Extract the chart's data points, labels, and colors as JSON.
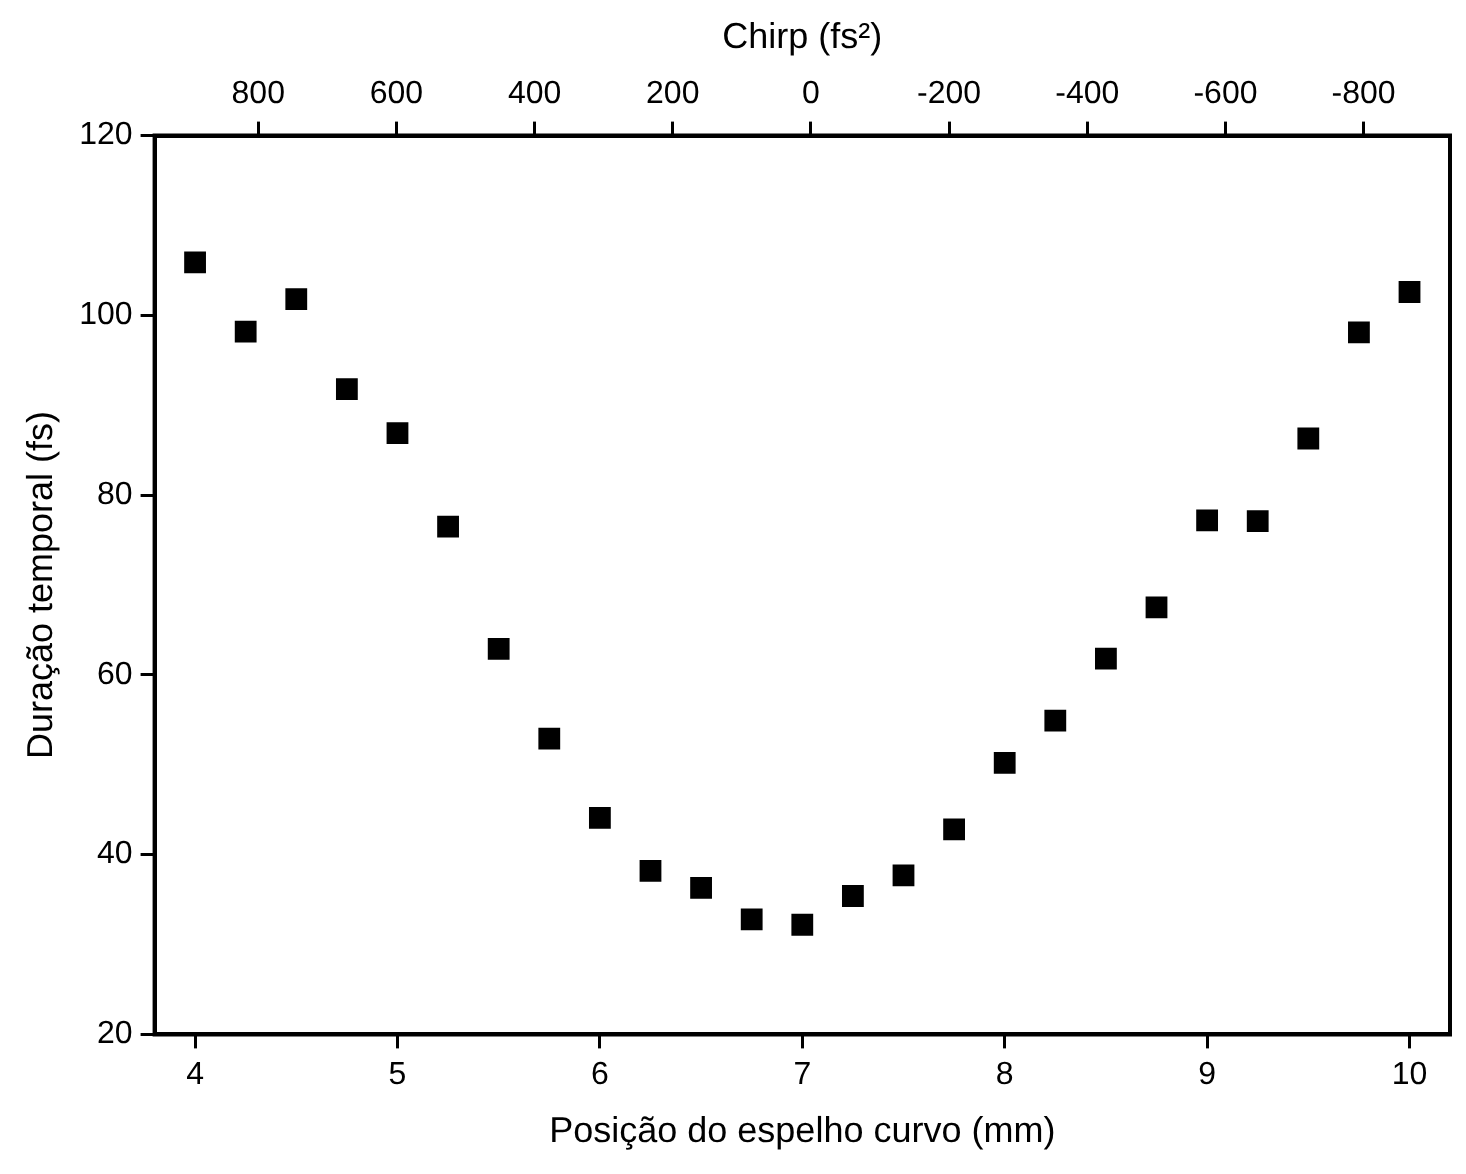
{
  "chart_data": {
    "type": "scatter",
    "xlabel": "Posição do espelho curvo (mm)",
    "ylabel": "Duração temporal (fs)",
    "x2label": "Chirp (fs²)",
    "x": [
      4,
      4.25,
      4.5,
      4.75,
      5,
      5.25,
      5.5,
      5.75,
      6,
      6.25,
      6.5,
      6.75,
      7,
      7.25,
      7.5,
      7.75,
      8,
      8.25,
      8.5,
      8.75,
      9,
      9.25,
      9.5,
      9.75,
      10
    ],
    "series": [
      {
        "color": "#000000",
        "values": [
          105.9,
          98.2,
          101.8,
          91.8,
          86.9,
          76.5,
          62.9,
          52.9,
          44.1,
          38.2,
          36.3,
          32.8,
          32.2,
          35.4,
          37.7,
          42.8,
          50.2,
          54.9,
          61.8,
          67.5,
          77.2,
          77.1,
          86.3,
          98.1,
          102.6
        ]
      }
    ],
    "xlim": [
      3.8,
      10.2
    ],
    "xticks": [
      4,
      5,
      6,
      7,
      8,
      9,
      10
    ],
    "x2lim": [
      950,
      -925
    ],
    "x2ticks": [
      800,
      600,
      400,
      200,
      0,
      -200,
      -400,
      -600,
      -800
    ],
    "ylim": [
      20,
      120
    ],
    "yticks": [
      20,
      40,
      60,
      80,
      100,
      120
    ],
    "marker": "square",
    "grid": false,
    "legend": false
  }
}
